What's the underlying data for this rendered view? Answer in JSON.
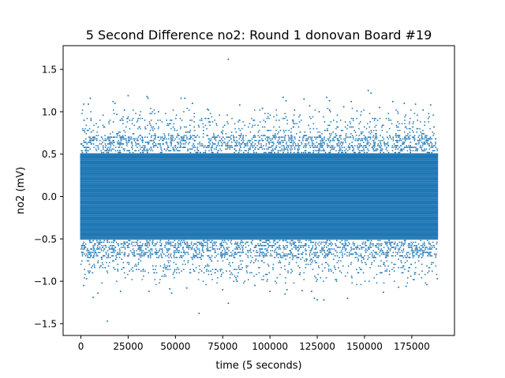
{
  "chart_data": {
    "type": "scatter",
    "title": "5 Second Difference no2: Round 1 donovan Board #19",
    "xlabel": "time (5 seconds)",
    "ylabel": "no2 (mV)",
    "xlim": [
      -9400,
      197600
    ],
    "ylim": [
      -1.64,
      1.78
    ],
    "xticks": [
      0,
      25000,
      50000,
      75000,
      100000,
      125000,
      150000,
      175000
    ],
    "xtick_labels": [
      "0",
      "25000",
      "50000",
      "75000",
      "100000",
      "125000",
      "150000",
      "175000"
    ],
    "yticks": [
      -1.5,
      -1.0,
      -0.5,
      0.0,
      0.5,
      1.0,
      1.5
    ],
    "ytick_labels": [
      "−1.5",
      "−1.0",
      "−0.5",
      "0.0",
      "0.5",
      "1.0",
      "1.5"
    ],
    "grid": false,
    "legend": "none",
    "color": "#1f77b4",
    "x_range_of_data": [
      0,
      188500
    ],
    "dense_levels_range": [
      -0.5,
      0.5
    ],
    "level_step": 0.02,
    "series": [
      {
        "values_note": "Scattered points outside the dense band",
        "points": [
          [
            78000,
            1.62
          ],
          [
            152000,
            1.25
          ],
          [
            153500,
            1.22
          ],
          [
            62500,
            -1.38
          ],
          [
            14000,
            -1.47
          ],
          [
            78000,
            -1.26
          ],
          [
            25000,
            1.19
          ],
          [
            35000,
            1.18
          ],
          [
            35500,
            1.16
          ],
          [
            5000,
            1.16
          ],
          [
            53000,
            1.16
          ],
          [
            55000,
            1.16
          ],
          [
            17000,
            1.12
          ],
          [
            18000,
            1.1
          ],
          [
            59000,
            1.1
          ],
          [
            84000,
            1.08
          ],
          [
            107000,
            1.17
          ],
          [
            108500,
            1.13
          ],
          [
            130000,
            1.17
          ],
          [
            131500,
            1.13
          ],
          [
            143000,
            1.12
          ],
          [
            165000,
            1.12
          ],
          [
            171000,
            1.1
          ],
          [
            177000,
            1.09
          ],
          [
            185000,
            1.08
          ],
          [
            1500,
            1.09
          ],
          [
            4000,
            1.09
          ],
          [
            118000,
            1.15
          ],
          [
            121000,
            1.07
          ],
          [
            139000,
            1.06
          ],
          [
            108000,
            -1.15
          ],
          [
            109000,
            -1.1
          ],
          [
            117000,
            -1.11
          ],
          [
            122000,
            -1.12
          ],
          [
            123500,
            -1.2
          ],
          [
            125000,
            -1.22
          ],
          [
            128500,
            -1.22
          ],
          [
            141000,
            -1.2
          ],
          [
            160000,
            -1.13
          ],
          [
            168000,
            -1.07
          ],
          [
            6500,
            -1.19
          ],
          [
            9000,
            -1.14
          ],
          [
            21000,
            -1.12
          ],
          [
            48000,
            -1.14
          ],
          [
            47000,
            -1.09
          ],
          [
            36000,
            -1.12
          ],
          [
            56000,
            -1.08
          ],
          [
            75000,
            -1.1
          ],
          [
            100000,
            -1.12
          ],
          [
            92000,
            -1.05
          ],
          [
            1500,
            -1.05
          ],
          [
            172000,
            -1.06
          ],
          [
            183000,
            -1.04
          ],
          [
            188500,
            -0.97
          ],
          [
            3000,
            -0.97
          ],
          [
            19000,
            0.97
          ],
          [
            23000,
            1.02
          ],
          [
            41000,
            1.0
          ],
          [
            67000,
            1.03
          ],
          [
            96000,
            1.04
          ],
          [
            113000,
            1.02
          ],
          [
            126000,
            1.0
          ],
          [
            146000,
            1.01
          ],
          [
            158000,
            1.05
          ],
          [
            181000,
            1.02
          ]
        ]
      }
    ]
  }
}
